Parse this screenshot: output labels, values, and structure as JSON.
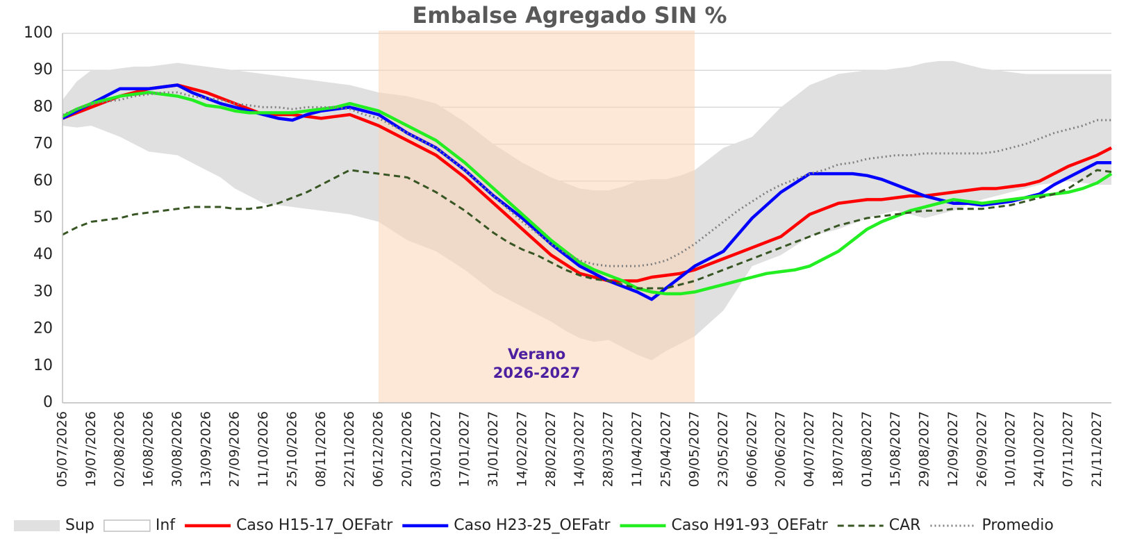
{
  "chart_data": {
    "type": "line",
    "title": "Embalse Agregado SIN %",
    "categories": [
      "05/07/2026",
      null,
      "19/07/2026",
      null,
      "02/08/2026",
      null,
      "16/08/2026",
      null,
      "30/08/2026",
      null,
      "13/09/2026",
      null,
      "27/09/2026",
      null,
      "11/10/2026",
      null,
      "25/10/2026",
      null,
      "08/11/2026",
      null,
      "22/11/2026",
      null,
      "06/12/2026",
      null,
      "20/12/2026",
      null,
      "03/01/2027",
      null,
      "17/01/2027",
      null,
      "31/01/2027",
      null,
      "14/02/2027",
      null,
      "28/02/2027",
      null,
      "14/03/2027",
      null,
      "28/03/2027",
      null,
      "11/04/2027",
      null,
      "25/04/2027",
      null,
      "09/05/2027",
      null,
      "23/05/2027",
      null,
      "06/06/2027",
      null,
      "20/06/2027",
      null,
      "04/07/2027",
      null,
      "18/07/2027",
      null,
      "01/08/2027",
      null,
      "15/08/2027",
      null,
      "29/08/2027",
      null,
      "12/09/2027",
      null,
      "26/09/2027",
      null,
      "10/10/2027",
      null,
      "24/10/2027",
      null,
      "07/11/2027",
      null,
      "21/11/2027",
      null
    ],
    "series": [
      {
        "name": "Sup",
        "kind": "area",
        "color": "#e0e0e0",
        "values": [
          82,
          87,
          90,
          90,
          90.5,
          91,
          91,
          91.5,
          92,
          91.5,
          91,
          90.5,
          90,
          89.5,
          89,
          88.5,
          88,
          87.5,
          87,
          86.5,
          86,
          85,
          84,
          83.5,
          83,
          82,
          81,
          78.5,
          76,
          73,
          70,
          67.5,
          65,
          63,
          61,
          59.5,
          58,
          57.5,
          57.5,
          58.5,
          60,
          60.5,
          60.5,
          61.5,
          63,
          66,
          69,
          70.5,
          72,
          76,
          80,
          83,
          86,
          87.5,
          89,
          89.5,
          90,
          90,
          90.5,
          91,
          92,
          92.5,
          92.5,
          91.5,
          90.5,
          90,
          89.5,
          89,
          89,
          89,
          89,
          89,
          89,
          89
        ]
      },
      {
        "name": "Inf",
        "kind": "area",
        "color": "#ffffff",
        "values": [
          75,
          74.5,
          75,
          73.5,
          72,
          70,
          68,
          67.5,
          67,
          65,
          63,
          61,
          58,
          56,
          54,
          53.5,
          53,
          52.5,
          52,
          51.5,
          51,
          50,
          49,
          46.5,
          44,
          42.5,
          41,
          38.5,
          36,
          33,
          30,
          28,
          26,
          24,
          22,
          19.5,
          17.5,
          16.5,
          17,
          15,
          13,
          11.5,
          14,
          16,
          18,
          21.5,
          25,
          31,
          37,
          38.5,
          40,
          42.5,
          45,
          46,
          47,
          48.5,
          50,
          51,
          52,
          51,
          50,
          51,
          52,
          53.5,
          55,
          56,
          57,
          58,
          59,
          59.5,
          60,
          59.5,
          59,
          59
        ]
      },
      {
        "name": "Caso H15-17_OEFatr",
        "color": "#ff0000",
        "values": [
          77,
          78.5,
          80,
          81.5,
          83,
          84,
          85,
          85.5,
          86,
          85,
          84,
          82.5,
          81,
          79.5,
          78,
          78,
          78,
          77.5,
          77,
          77.5,
          78,
          76.5,
          75,
          73,
          71,
          69,
          67,
          64,
          61,
          57.5,
          54,
          50.5,
          47,
          43.5,
          40,
          37.5,
          35,
          34,
          33,
          33,
          33,
          34,
          34.5,
          35,
          36,
          37.5,
          39,
          40.5,
          42,
          43.5,
          45,
          48,
          51,
          52.5,
          54,
          54.5,
          55,
          55,
          55.5,
          56,
          56,
          56.5,
          57,
          57.5,
          58,
          58,
          58.5,
          59,
          60,
          62,
          64,
          65.5,
          67,
          69
        ]
      },
      {
        "name": "Caso H23-25_OEFatr",
        "color": "#0000ff",
        "values": [
          77,
          79,
          81,
          83,
          85,
          85,
          85,
          85.5,
          86,
          84,
          82.5,
          81,
          80,
          79,
          78,
          77,
          76.5,
          78,
          79,
          79.5,
          80,
          79,
          78,
          75.5,
          73,
          71,
          69,
          66,
          63,
          59.5,
          56,
          53,
          50,
          46.5,
          43,
          40,
          37,
          35,
          33,
          31.5,
          30,
          28,
          31,
          34,
          37,
          39,
          41,
          45.5,
          50,
          53.5,
          57,
          59.5,
          62,
          62,
          62,
          62,
          61.5,
          60.5,
          59,
          57.5,
          56,
          55,
          54,
          54,
          53.5,
          54,
          54.5,
          55.5,
          56.5,
          59,
          61,
          63,
          65,
          65
        ]
      },
      {
        "name": "Caso H91-93_OEFatr",
        "color": "#22ee22",
        "values": [
          77.5,
          79.5,
          81,
          82,
          83,
          83.5,
          84,
          83.5,
          83,
          82,
          80.5,
          80,
          79,
          78.5,
          78.5,
          78.5,
          78.5,
          79,
          79.5,
          80,
          81,
          80,
          79,
          77,
          75,
          73,
          71,
          68,
          65,
          61.5,
          58,
          54.5,
          51,
          47.5,
          44,
          41,
          38,
          36,
          34.5,
          33,
          31,
          30,
          29.5,
          29.5,
          30,
          31,
          32,
          33,
          34,
          35,
          35.5,
          36,
          37,
          39,
          41,
          44,
          47,
          49,
          50.5,
          52,
          53,
          54,
          55,
          54.5,
          54,
          54.5,
          55,
          55.5,
          56,
          56.5,
          57,
          58,
          59.5,
          62
        ]
      },
      {
        "name": "CAR",
        "color": "#375623",
        "dash": "dash",
        "values": [
          45.5,
          47.5,
          49,
          49.5,
          50,
          51,
          51.5,
          52,
          52.5,
          53,
          53,
          53,
          52.5,
          52.5,
          53,
          54,
          55.5,
          57,
          59,
          61,
          63,
          62.5,
          62,
          61.5,
          61,
          59,
          57,
          54.5,
          52,
          49,
          46,
          43.5,
          41.5,
          40,
          38,
          36,
          34.5,
          33.5,
          33,
          32,
          31,
          31,
          31,
          32,
          33,
          34.5,
          36,
          37.5,
          39,
          40.5,
          42,
          43.5,
          45,
          46.5,
          48,
          49,
          50,
          50.5,
          51,
          51.5,
          52,
          52,
          52.5,
          52.5,
          52.5,
          53,
          53.5,
          54.5,
          55.5,
          56.5,
          58,
          60.5,
          63,
          62.5
        ]
      },
      {
        "name": "Promedio",
        "color": "#7f7f7f",
        "dash": "dot",
        "values": [
          78,
          79.5,
          81,
          81.5,
          82,
          83,
          83.5,
          84,
          84,
          83,
          82.5,
          82,
          81,
          80.5,
          80,
          80,
          79.5,
          80,
          80,
          80,
          79.5,
          78,
          77,
          75,
          73,
          71,
          69,
          66,
          63,
          59.5,
          56,
          52.5,
          49,
          46,
          43,
          40.5,
          38.5,
          37.5,
          37,
          37,
          37,
          37.5,
          38.5,
          40.5,
          43,
          46,
          49,
          52,
          54.5,
          57,
          59,
          60.5,
          62,
          63,
          64.5,
          65,
          66,
          66.5,
          67,
          67,
          67.5,
          67.5,
          67.5,
          67.5,
          67.5,
          68,
          69,
          70,
          71.5,
          73,
          74,
          75,
          76.5,
          76.5
        ]
      }
    ],
    "ylim": [
      0,
      100
    ],
    "yticks": [
      0,
      10,
      20,
      30,
      40,
      50,
      60,
      70,
      80,
      90,
      100
    ],
    "grid": true,
    "legend": "bottom",
    "highlight": {
      "from": "06/12/2026",
      "to": "09/05/2027",
      "color": "#fbd3b5",
      "label": [
        "Verano",
        "2026-2027"
      ],
      "label_color": "#4b1fa0"
    }
  }
}
